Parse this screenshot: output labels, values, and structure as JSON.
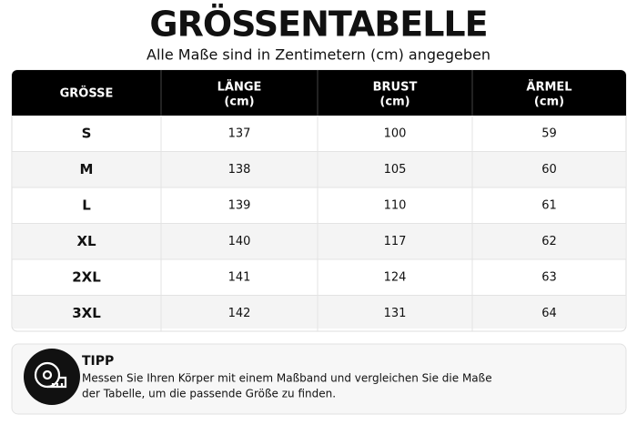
{
  "header": {
    "title": "GRÖSSENTABELLE",
    "subtitle": "Alle Maße sind in Zentimetern (cm) angegeben"
  },
  "table": {
    "header": [
      {
        "label": "GRÖSSE"
      },
      {
        "label": "LÄNGE",
        "unit": "(cm)"
      },
      {
        "label": "BRUST",
        "unit": "(cm)"
      },
      {
        "label": "ÄRMEL",
        "unit": "(cm)"
      }
    ],
    "rows": [
      [
        "S",
        137,
        100,
        59
      ],
      [
        "M",
        138,
        105,
        60
      ],
      [
        "L",
        139,
        110,
        61
      ],
      [
        "XL",
        140,
        117,
        62
      ],
      [
        "2XL",
        141,
        124,
        63
      ],
      [
        "3XL",
        142,
        131,
        64
      ]
    ]
  },
  "tip": {
    "title": "TIPP",
    "lines": [
      "Messen Sie Ihren Körper mit einem Maßband und vergleichen Sie die Maße",
      "der Tabelle, um die passende Größe zu finden."
    ]
  }
}
